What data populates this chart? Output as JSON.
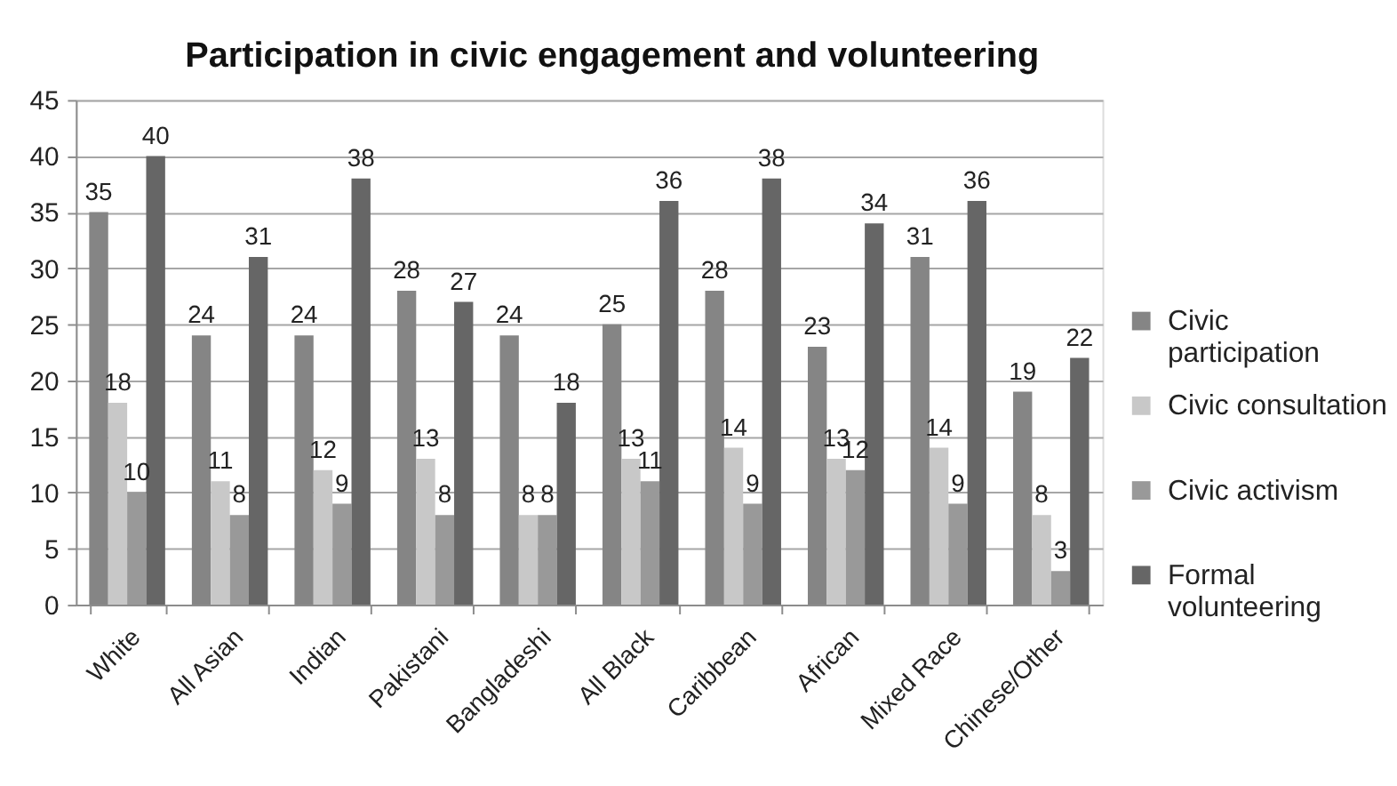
{
  "chart_data": {
    "type": "bar",
    "title": "Participation in civic engagement and volunteering",
    "categories": [
      "White",
      "All Asian",
      "Indian",
      "Pakistani",
      "Bangladeshi",
      "All Black",
      "Caribbean",
      "African",
      "Mixed Race",
      "Chinese/Other"
    ],
    "series": [
      {
        "name": "Civic participation",
        "color": "#858585",
        "values": [
          35,
          24,
          24,
          28,
          24,
          25,
          28,
          23,
          31,
          19
        ]
      },
      {
        "name": "Civic consultation",
        "color": "#c8c8c8",
        "values": [
          18,
          11,
          12,
          13,
          8,
          13,
          14,
          13,
          14,
          8
        ]
      },
      {
        "name": "Civic activism",
        "color": "#999999",
        "values": [
          10,
          8,
          9,
          8,
          8,
          11,
          9,
          12,
          9,
          3
        ]
      },
      {
        "name": "Formal volunteering",
        "color": "#666666",
        "values": [
          40,
          31,
          38,
          27,
          18,
          36,
          38,
          34,
          36,
          22
        ]
      }
    ],
    "ylim": [
      0,
      45
    ],
    "yticks": [
      0,
      5,
      10,
      15,
      20,
      25,
      30,
      35,
      40,
      45
    ],
    "grid": "y",
    "legend": "right",
    "data_labels": true
  }
}
